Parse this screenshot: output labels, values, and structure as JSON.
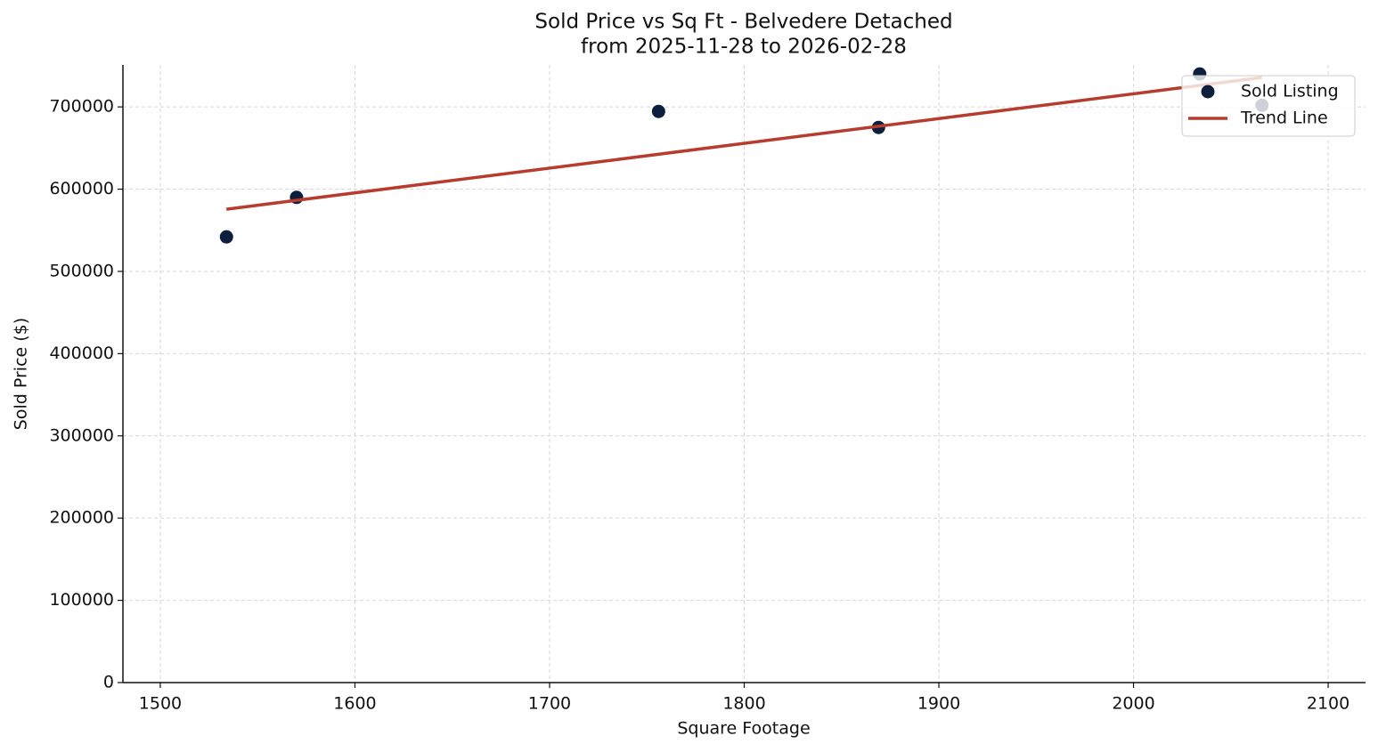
{
  "chart_data": {
    "type": "scatter",
    "title": "Sold Price vs Sq Ft - Belvedere Detached",
    "subtitle": "from 2025-11-28 to 2026-02-28",
    "x_label": "Square Footage",
    "y_label": "Sold Price ($)",
    "xlim": [
      1480.8,
      2119.2
    ],
    "ylim": [
      0,
      751000
    ],
    "xticks": [
      1500,
      1600,
      1700,
      1800,
      1900,
      2000,
      2100
    ],
    "yticks": [
      0,
      100000,
      200000,
      300000,
      400000,
      500000,
      600000,
      700000
    ],
    "grid": true,
    "legend": "upper right",
    "series": [
      {
        "name": "Sold Listing",
        "type": "scatter",
        "color": "#0d1f3c",
        "x": [
          1534,
          1570,
          1756,
          1869,
          2034,
          2066
        ],
        "values": [
          542000,
          590000,
          694500,
          675000,
          740000,
          702000
        ]
      },
      {
        "name": "Trend Line",
        "type": "line",
        "color": "#b83c2e",
        "x": [
          1534,
          2066
        ],
        "values": [
          575600,
          735800
        ]
      }
    ]
  }
}
